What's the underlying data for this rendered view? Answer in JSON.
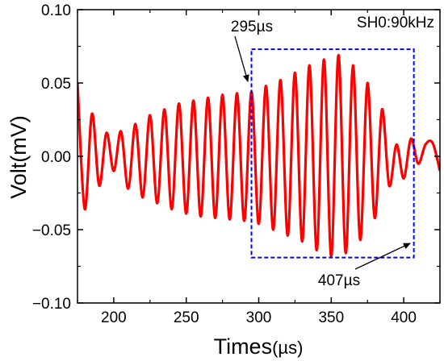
{
  "chart_data": {
    "type": "line",
    "title": "",
    "xlabel": "Times",
    "xlabel_unit": "(µs)",
    "ylabel": "Volt(mV)",
    "xlim": [
      175,
      425
    ],
    "ylim": [
      -0.1,
      0.1
    ],
    "x_ticks": [
      200,
      250,
      300,
      350,
      400
    ],
    "x_tick_labels": [
      "200",
      "250",
      "300",
      "350",
      "400"
    ],
    "y_ticks": [
      -0.1,
      -0.05,
      0.0,
      0.05,
      0.1
    ],
    "y_tick_labels": [
      "−0.10",
      "−0.05",
      "0.00",
      "0.05",
      "0.10"
    ],
    "grid": false,
    "series": [
      {
        "color": "#ff0000",
        "x": [
          175,
          180,
          185,
          190,
          195,
          200,
          205,
          210,
          215,
          220,
          225,
          230,
          235,
          240,
          245,
          250,
          255,
          260,
          265,
          270,
          275,
          280,
          285,
          290,
          295,
          300,
          305,
          310,
          315,
          320,
          325,
          330,
          335,
          340,
          345,
          350,
          355,
          360,
          365,
          370,
          375,
          380,
          385,
          390,
          395,
          400,
          405,
          410,
          415,
          420,
          425
        ],
        "y": [
          0.05,
          -0.036,
          0.029,
          -0.02,
          0.016,
          -0.01,
          0.017,
          -0.022,
          0.022,
          -0.028,
          0.028,
          -0.032,
          0.032,
          -0.036,
          0.036,
          -0.039,
          0.038,
          -0.041,
          0.04,
          -0.042,
          0.042,
          -0.043,
          0.043,
          -0.044,
          0.044,
          -0.046,
          0.048,
          -0.05,
          0.052,
          -0.054,
          0.057,
          -0.058,
          0.062,
          -0.064,
          0.066,
          -0.068,
          0.069,
          -0.066,
          0.062,
          -0.057,
          0.05,
          -0.042,
          0.032,
          -0.02,
          0.008,
          -0.015,
          0.012,
          -0.005,
          0.008,
          0.009,
          -0.01
        ]
      }
    ],
    "legend_text": "SH0:90kHz",
    "legend_placement": "top-right",
    "annotations": [
      {
        "text": "295µs"
      },
      {
        "text": "407µs"
      }
    ],
    "highlight_box": {
      "x0": 295,
      "x1": 407,
      "y0": -0.069,
      "y1": 0.073,
      "color": "#0000ff",
      "style": "dashed"
    }
  }
}
